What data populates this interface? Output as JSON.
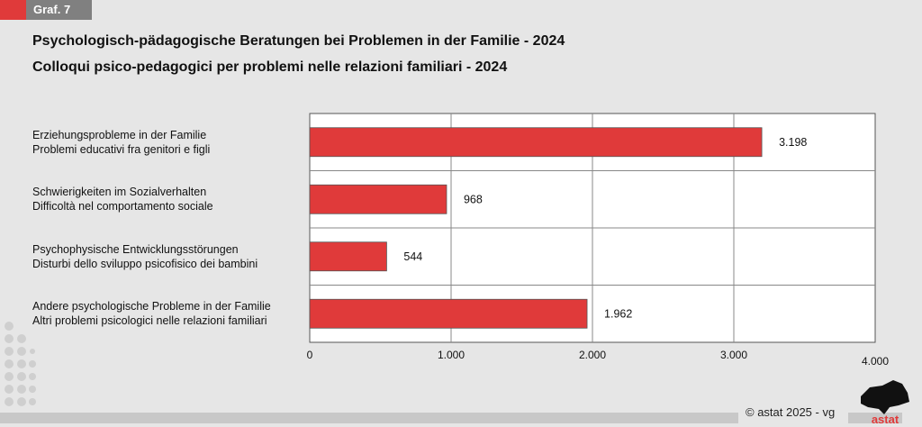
{
  "header": {
    "tag": "Graf. 7"
  },
  "footer": {
    "copyright": "© astat 2025 - vg",
    "logo_text": "astat"
  },
  "chart_data": {
    "type": "bar",
    "orientation": "horizontal",
    "title": "Psychologisch-pädagogische Beratungen bei Problemen in der Familie - 2024",
    "subtitle": "Colloqui psico-pedagogici per problemi nelle relazioni familiari - 2024",
    "categories": [
      [
        "Erziehungsprobleme in der Familie",
        "Problemi educativi fra genitori e figli"
      ],
      [
        "Schwierigkeiten im Sozialverhalten",
        "Difficoltà nel comportamento sociale"
      ],
      [
        "Psychophysische Entwicklungsstörungen",
        "Disturbi dello sviluppo psicofisico dei bambini"
      ],
      [
        "Andere psychologische Probleme in der Familie",
        "Altri problemi psicologici nelle relazioni familiari"
      ]
    ],
    "values": [
      3198,
      968,
      544,
      1962
    ],
    "value_labels": [
      "3.198",
      "968",
      "544",
      "1.962"
    ],
    "xlim": [
      0,
      4000
    ],
    "xticks": [
      0,
      1000,
      2000,
      3000,
      4000
    ],
    "xtick_labels": [
      "0",
      "1.000",
      "2.000",
      "3.000",
      "4.000"
    ],
    "grid": true,
    "bar_color": "#e03a3a"
  }
}
